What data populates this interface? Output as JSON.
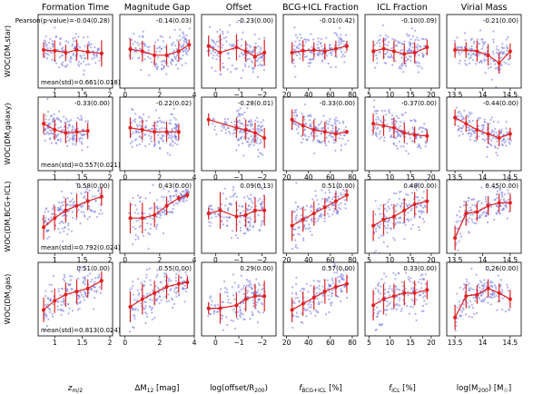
{
  "columns": [
    {
      "title": "Formation Time",
      "xlabel": "z",
      "xlabel_sub": "m/2",
      "xlim": [
        0.7,
        2.05
      ],
      "ticks": [
        1.0,
        1.5,
        2.0
      ]
    },
    {
      "title": "Magnitude Gap",
      "xlabel": "ΔM",
      "xlabel_sub": "12",
      "xlabel_suffix": " [mag]",
      "xlim": [
        -0.3,
        4.0
      ],
      "ticks": [
        0,
        2,
        4
      ]
    },
    {
      "title": "Offset",
      "xlabel": "log(offset/R",
      "xlabel_sub": "200",
      "xlabel_suffix": ")",
      "xlim": [
        0.6,
        -2.6
      ],
      "ticks": [
        0,
        -1,
        -2
      ]
    },
    {
      "title": "BCG+ICL Fraction",
      "xlabel": "f",
      "xlabel_sub": "BCG+ICL",
      "xlabel_suffix": " [%]",
      "xlim": [
        17,
        85
      ],
      "ticks": [
        20,
        40,
        60,
        80
      ]
    },
    {
      "title": "ICL Fraction",
      "xlabel": "f",
      "xlabel_sub": "ICL",
      "xlabel_suffix": " [%]",
      "xlim": [
        4,
        22
      ],
      "ticks": [
        5,
        10,
        15,
        20
      ]
    },
    {
      "title": "Virial Mass",
      "xlabel": "log(M",
      "xlabel_sub": "200",
      "xlabel_suffix": ") [M",
      "xlabel_sub2": "☉",
      "xlabel_suffix2": "]",
      "xlim": [
        13.35,
        14.7
      ],
      "ticks": [
        13.5,
        14.0,
        14.5
      ]
    }
  ],
  "rows": [
    {
      "ylabel": "WOC(DM,star)",
      "ylim": [
        0.52,
        0.8
      ],
      "mean_std": "mean(std)=0.661(0.018)"
    },
    {
      "ylabel": "WOC(DM,galaxy)",
      "ylim": [
        0.36,
        0.72
      ],
      "mean_std": "mean(std)=0.557(0.021)"
    },
    {
      "ylabel": "WOC(DM,BCG+ICL)",
      "ylim": [
        0.66,
        0.9
      ],
      "mean_std": "mean(std)=0.792(0.024)"
    },
    {
      "ylabel": "WOC(DM,gas)",
      "ylim": [
        0.68,
        0.92
      ],
      "mean_std": "mean(std)=0.813(0.024)"
    }
  ],
  "pearson_prefix": "Pearson(p-value)=",
  "colors": {
    "scatter": "#6f6fe0",
    "trend": "#e02020"
  },
  "chart_data": [
    {
      "row": 0,
      "col": 0,
      "type": "scatter",
      "annotation": "-0.04(0.28)",
      "trend_x": [
        0.8,
        1.0,
        1.2,
        1.4,
        1.6,
        1.85
      ],
      "trend_y": [
        0.665,
        0.662,
        0.655,
        0.665,
        0.658,
        0.652
      ],
      "err": [
        0.03,
        0.04,
        0.03,
        0.04,
        0.03,
        0.05
      ]
    },
    {
      "row": 0,
      "col": 1,
      "type": "scatter",
      "annotation": "-0.14(0.03)",
      "trend_x": [
        0.3,
        1.0,
        1.7,
        2.4,
        3.1,
        3.7
      ],
      "trend_y": [
        0.668,
        0.66,
        0.645,
        0.645,
        0.66,
        0.685
      ],
      "err": [
        0.04,
        0.04,
        0.04,
        0.04,
        0.04,
        0.02
      ]
    },
    {
      "row": 0,
      "col": 2,
      "type": "scatter",
      "annotation": "-0.23(0.00)",
      "trend_x": [
        0.3,
        -0.2,
        -0.9,
        -1.3,
        -1.7,
        -2.1
      ],
      "trend_y": [
        0.68,
        0.655,
        0.675,
        0.66,
        0.64,
        0.655
      ],
      "err": [
        0.04,
        0.07,
        0.05,
        0.04,
        0.04,
        0.05
      ]
    },
    {
      "row": 0,
      "col": 3,
      "type": "scatter",
      "annotation": "-0.01(0.42)",
      "trend_x": [
        25,
        35,
        45,
        55,
        65,
        75
      ],
      "trend_y": [
        0.655,
        0.662,
        0.665,
        0.66,
        0.67,
        0.68
      ],
      "err": [
        0.04,
        0.04,
        0.03,
        0.03,
        0.03,
        0.02
      ]
    },
    {
      "row": 0,
      "col": 4,
      "type": "scatter",
      "annotation": "-0.10(0.09)",
      "trend_x": [
        6,
        8.5,
        11,
        13.5,
        16,
        19
      ],
      "trend_y": [
        0.66,
        0.67,
        0.66,
        0.65,
        0.655,
        0.675
      ],
      "err": [
        0.04,
        0.04,
        0.04,
        0.04,
        0.04,
        0.03
      ]
    },
    {
      "row": 0,
      "col": 5,
      "type": "scatter",
      "annotation": "-0.21(0.00)",
      "trend_x": [
        13.5,
        13.7,
        13.9,
        14.1,
        14.3,
        14.5
      ],
      "trend_y": [
        0.665,
        0.665,
        0.66,
        0.645,
        0.615,
        0.66
      ],
      "err": [
        0.03,
        0.03,
        0.04,
        0.04,
        0.04,
        0.03
      ]
    },
    {
      "row": 1,
      "col": 0,
      "type": "scatter",
      "annotation": "-0.33(0.00)",
      "trend_x": [
        0.8,
        1.0,
        1.2,
        1.4,
        1.6
      ],
      "trend_y": [
        0.59,
        0.56,
        0.545,
        0.55,
        0.555
      ],
      "err": [
        0.05,
        0.05,
        0.05,
        0.05,
        0.04
      ]
    },
    {
      "row": 1,
      "col": 1,
      "type": "scatter",
      "annotation": "-0.22(0.02)",
      "trend_x": [
        0.3,
        1.0,
        1.7,
        2.4,
        3.1
      ],
      "trend_y": [
        0.57,
        0.56,
        0.55,
        0.55,
        0.55
      ],
      "err": [
        0.05,
        0.05,
        0.05,
        0.05,
        0.04
      ]
    },
    {
      "row": 1,
      "col": 2,
      "type": "scatter",
      "annotation": "-0.28(0.01)",
      "trend_x": [
        0.3,
        -0.9,
        -1.3,
        -1.7,
        -2.1
      ],
      "trend_y": [
        0.61,
        0.57,
        0.56,
        0.545,
        0.52
      ],
      "err": [
        0.03,
        0.05,
        0.05,
        0.05,
        0.05
      ]
    },
    {
      "row": 1,
      "col": 3,
      "type": "scatter",
      "annotation": "-0.33(0.00)",
      "trend_x": [
        25,
        35,
        45,
        55,
        65,
        75
      ],
      "trend_y": [
        0.61,
        0.58,
        0.56,
        0.55,
        0.54,
        0.55
      ],
      "err": [
        0.05,
        0.05,
        0.05,
        0.05,
        0.04,
        0.01
      ]
    },
    {
      "row": 1,
      "col": 4,
      "type": "scatter",
      "annotation": "-0.37(0.00)",
      "trend_x": [
        6,
        8.5,
        11,
        13.5,
        16,
        19
      ],
      "trend_y": [
        0.59,
        0.58,
        0.57,
        0.545,
        0.535,
        0.53
      ],
      "err": [
        0.05,
        0.05,
        0.05,
        0.05,
        0.04,
        0.03
      ]
    },
    {
      "row": 1,
      "col": 5,
      "type": "scatter",
      "annotation": "-0.44(0.00)",
      "trend_x": [
        13.5,
        13.7,
        13.9,
        14.1,
        14.3,
        14.5
      ],
      "trend_y": [
        0.62,
        0.59,
        0.56,
        0.54,
        0.52,
        0.54
      ],
      "err": [
        0.04,
        0.04,
        0.05,
        0.05,
        0.04,
        0.03
      ]
    },
    {
      "row": 2,
      "col": 0,
      "type": "scatter",
      "annotation": "0.58(0.00)",
      "trend_x": [
        0.8,
        1.0,
        1.2,
        1.4,
        1.6,
        1.85
      ],
      "trend_y": [
        0.745,
        0.775,
        0.8,
        0.815,
        0.83,
        0.845
      ],
      "err": [
        0.04,
        0.04,
        0.04,
        0.04,
        0.03,
        0.03
      ]
    },
    {
      "row": 2,
      "col": 1,
      "type": "scatter",
      "annotation": "0.43(0.00)",
      "trend_x": [
        0.3,
        1.0,
        1.7,
        2.4,
        3.1,
        3.6
      ],
      "trend_y": [
        0.775,
        0.775,
        0.785,
        0.815,
        0.84,
        0.85
      ],
      "err": [
        0.05,
        0.05,
        0.04,
        0.03,
        0.01,
        0.01
      ]
    },
    {
      "row": 2,
      "col": 2,
      "type": "scatter",
      "annotation": "0.09(0.13)",
      "trend_x": [
        0.3,
        -0.2,
        -0.9,
        -1.3,
        -1.7,
        -2.1
      ],
      "trend_y": [
        0.79,
        0.8,
        0.78,
        0.785,
        0.8,
        0.8
      ],
      "err": [
        0.02,
        0.06,
        0.05,
        0.04,
        0.04,
        0.05
      ]
    },
    {
      "row": 2,
      "col": 3,
      "type": "scatter",
      "annotation": "0.51(0.00)",
      "trend_x": [
        25,
        35,
        45,
        55,
        65,
        75
      ],
      "trend_y": [
        0.75,
        0.77,
        0.79,
        0.81,
        0.83,
        0.85
      ],
      "err": [
        0.05,
        0.04,
        0.04,
        0.03,
        0.03,
        0.02
      ]
    },
    {
      "row": 2,
      "col": 4,
      "type": "scatter",
      "annotation": "0.48(0.00)",
      "trend_x": [
        6,
        8.5,
        11,
        13.5,
        16,
        19
      ],
      "trend_y": [
        0.75,
        0.77,
        0.78,
        0.8,
        0.82,
        0.83
      ],
      "err": [
        0.05,
        0.05,
        0.04,
        0.04,
        0.04,
        0.04
      ]
    },
    {
      "row": 2,
      "col": 5,
      "type": "scatter",
      "annotation": "0.45(0.00)",
      "trend_x": [
        13.5,
        13.7,
        13.9,
        14.1,
        14.3,
        14.5
      ],
      "trend_y": [
        0.71,
        0.79,
        0.795,
        0.815,
        0.825,
        0.825
      ],
      "err": [
        0.04,
        0.04,
        0.03,
        0.03,
        0.03,
        0.03
      ]
    },
    {
      "row": 3,
      "col": 0,
      "type": "scatter",
      "annotation": "0.51(0.00)",
      "trend_x": [
        0.8,
        1.0,
        1.2,
        1.4,
        1.6,
        1.85
      ],
      "trend_y": [
        0.765,
        0.795,
        0.815,
        0.825,
        0.835,
        0.86
      ],
      "err": [
        0.04,
        0.04,
        0.04,
        0.04,
        0.03,
        0.03
      ]
    },
    {
      "row": 3,
      "col": 1,
      "type": "scatter",
      "annotation": "0.55(0.00)",
      "trend_x": [
        0.3,
        1.0,
        1.7,
        2.4,
        3.1,
        3.6
      ],
      "trend_y": [
        0.775,
        0.8,
        0.82,
        0.84,
        0.85,
        0.855
      ],
      "err": [
        0.05,
        0.05,
        0.04,
        0.04,
        0.03,
        0.02
      ]
    },
    {
      "row": 3,
      "col": 2,
      "type": "scatter",
      "annotation": "0.29(0.00)",
      "trend_x": [
        0.3,
        -0.2,
        -0.9,
        -1.3,
        -1.7,
        -2.1
      ],
      "trend_y": [
        0.77,
        0.77,
        0.78,
        0.8,
        0.81,
        0.81
      ],
      "err": [
        0.02,
        0.05,
        0.04,
        0.04,
        0.04,
        0.05
      ]
    },
    {
      "row": 3,
      "col": 3,
      "type": "scatter",
      "annotation": "0.57(0.00)",
      "trend_x": [
        25,
        35,
        45,
        55,
        65,
        75
      ],
      "trend_y": [
        0.765,
        0.785,
        0.805,
        0.825,
        0.84,
        0.85
      ],
      "err": [
        0.04,
        0.04,
        0.04,
        0.04,
        0.03,
        0.03
      ]
    },
    {
      "row": 3,
      "col": 4,
      "type": "scatter",
      "annotation": "0.33(0.00)",
      "trend_x": [
        6,
        8.5,
        11,
        13.5,
        16,
        19
      ],
      "trend_y": [
        0.78,
        0.8,
        0.81,
        0.82,
        0.82,
        0.83
      ],
      "err": [
        0.05,
        0.05,
        0.04,
        0.04,
        0.04,
        0.03
      ]
    },
    {
      "row": 3,
      "col": 5,
      "type": "scatter",
      "annotation": "0.26(0.00)",
      "trend_x": [
        13.5,
        13.7,
        13.9,
        14.1,
        14.3,
        14.5
      ],
      "trend_y": [
        0.74,
        0.81,
        0.815,
        0.835,
        0.82,
        0.8
      ],
      "err": [
        0.04,
        0.04,
        0.03,
        0.03,
        0.03,
        0.03
      ]
    }
  ]
}
